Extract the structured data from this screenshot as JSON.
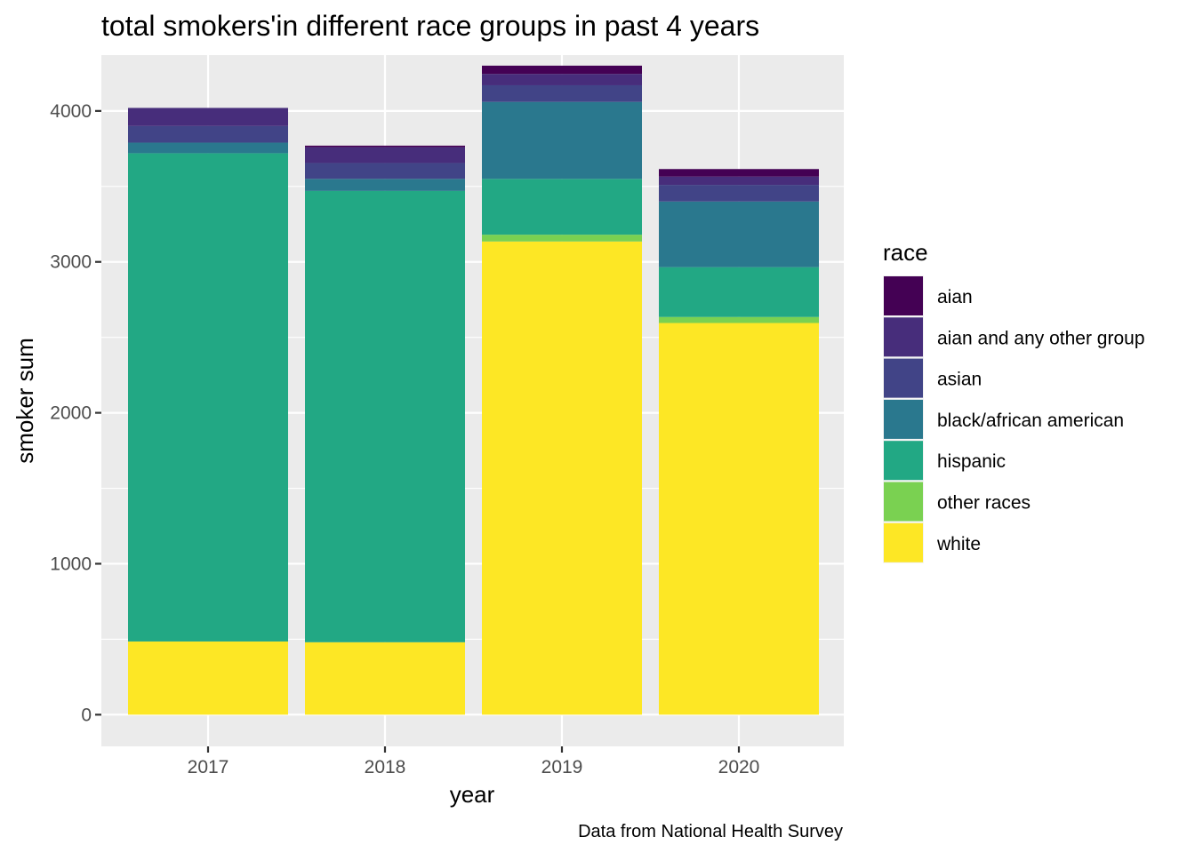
{
  "chart_data": {
    "type": "bar",
    "stacked": true,
    "title": "total smokers'in different race groups in  past 4 years",
    "xlabel": "year",
    "ylabel": "smoker sum",
    "caption": "Data from National Health Survey",
    "categories": [
      "2017",
      "2018",
      "2019",
      "2020"
    ],
    "ylim": [
      -210,
      4370
    ],
    "yticks": [
      0,
      1000,
      2000,
      3000,
      4000
    ],
    "grid": true,
    "legend": {
      "title": "race",
      "position": "right"
    },
    "series": [
      {
        "name": "white",
        "color": "#FDE725",
        "values": [
          485,
          480,
          3135,
          2595
        ]
      },
      {
        "name": "other races",
        "color": "#7AD151",
        "values": [
          0,
          0,
          45,
          40
        ]
      },
      {
        "name": "hispanic",
        "color": "#22A884",
        "values": [
          3235,
          2990,
          370,
          330
        ]
      },
      {
        "name": "black/african american",
        "color": "#2A788E",
        "values": [
          70,
          80,
          510,
          435
        ]
      },
      {
        "name": "asian",
        "color": "#414487",
        "values": [
          110,
          105,
          110,
          110
        ]
      },
      {
        "name": "aian and any other group",
        "color": "#472D7B",
        "values": [
          120,
          105,
          75,
          55
        ]
      },
      {
        "name": "aian",
        "color": "#440154",
        "values": [
          0,
          10,
          55,
          50
        ]
      }
    ]
  }
}
